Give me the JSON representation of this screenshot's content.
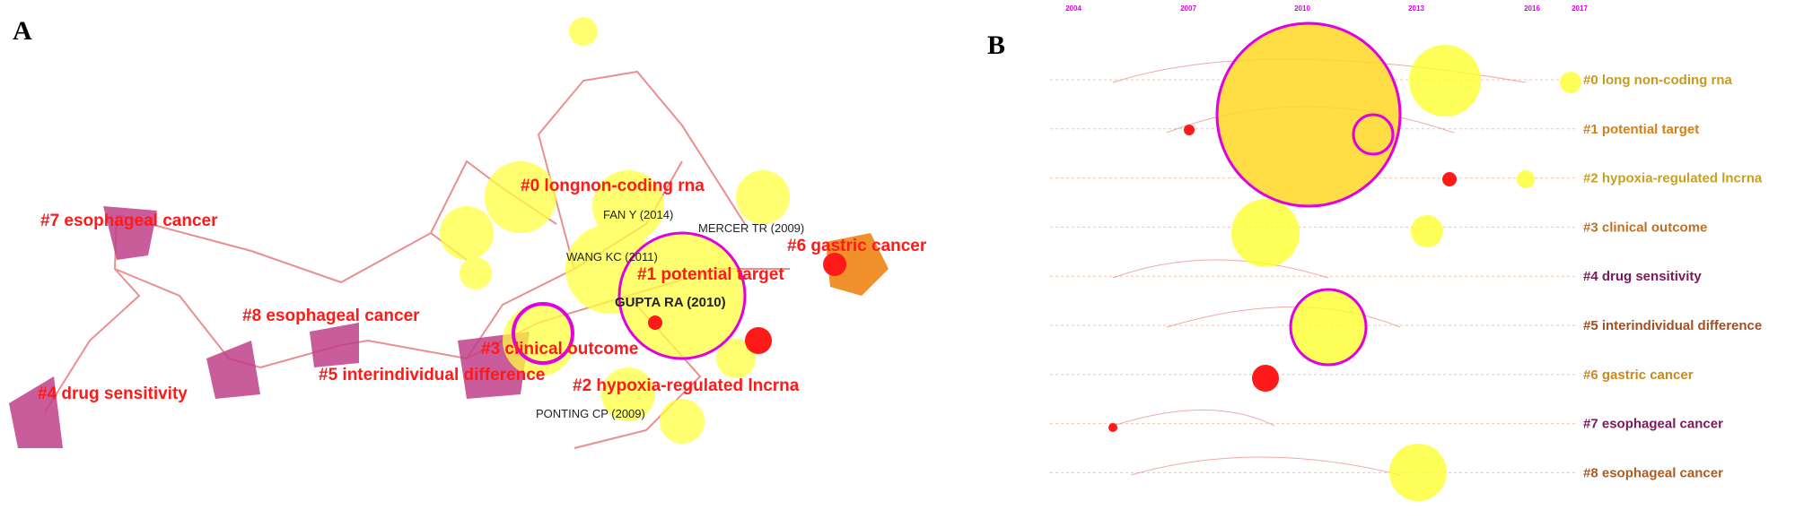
{
  "panel_a": {
    "label": "A",
    "cluster_labels": [
      "#0 longnon-coding rna",
      "#7 esophageal cancer",
      "#6 gastric cancer",
      "#1 potential target",
      "#8 esophageal cancer",
      "#3 clinical outcome",
      "#5 interindividual difference",
      "#2 hypoxia-regulated lncrna",
      "#4 drug sensitivity"
    ],
    "author_labels": [
      "FAN Y (2014)",
      "MERCER TR (2009)",
      "WANG KC (2011)",
      "GUPTA RA (2010)",
      "PONTING CP (2009)"
    ]
  },
  "panel_b": {
    "label": "B",
    "years": [
      "2004",
      "2007",
      "2010",
      "2013",
      "2016",
      "2017"
    ],
    "clusters": [
      "#0 long non-coding rna",
      "#1 potential target",
      "#2 hypoxia-regulated lncrna",
      "#3 clinical outcome",
      "#4 drug sensitivity",
      "#5 interindividual difference",
      "#6 gastric cancer",
      "#7 esophageal cancer",
      "#8 esophageal cancer"
    ]
  }
}
